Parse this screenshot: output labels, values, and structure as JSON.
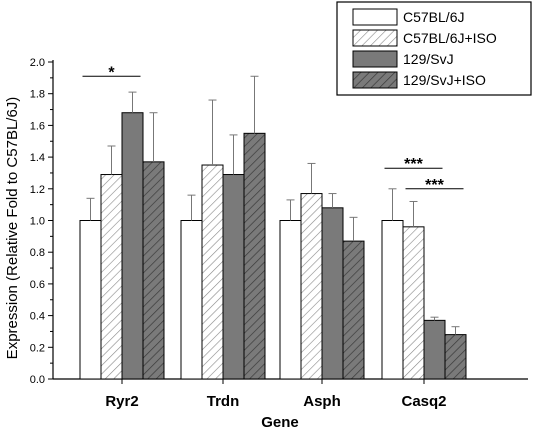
{
  "chart_data": {
    "type": "bar",
    "xlabel": "Gene",
    "ylabel": "Expression (Relative Fold to C57BL/6J)",
    "ylim": [
      0.0,
      2.0
    ],
    "yticks": [
      "0.0",
      "0.2",
      "0.4",
      "0.6",
      "0.8",
      "1.0",
      "1.2",
      "1.4",
      "1.6",
      "1.8",
      "2.0"
    ],
    "categories": [
      "Ryr2",
      "Trdn",
      "Asph",
      "Casq2"
    ],
    "legend_position": "top-right",
    "series": [
      {
        "name": "C57BL/6J",
        "fill": "#ffffff",
        "pattern": "none",
        "values": [
          1.0,
          1.0,
          1.0,
          1.0
        ],
        "errors": [
          0.14,
          0.16,
          0.13,
          0.2
        ]
      },
      {
        "name": "C57BL/6J+ISO",
        "fill": "#ffffff",
        "pattern": "hatch",
        "values": [
          1.29,
          1.35,
          1.17,
          0.96
        ],
        "errors": [
          0.18,
          0.41,
          0.19,
          0.16
        ]
      },
      {
        "name": "129/SvJ",
        "fill": "#7a7a7a",
        "pattern": "none",
        "values": [
          1.68,
          1.29,
          1.08,
          0.37
        ],
        "errors": [
          0.13,
          0.25,
          0.09,
          0.02
        ]
      },
      {
        "name": "129/SvJ+ISO",
        "fill": "#7a7a7a",
        "pattern": "hatch",
        "values": [
          1.37,
          1.55,
          0.87,
          0.28
        ],
        "errors": [
          0.31,
          0.36,
          0.15,
          0.05
        ]
      }
    ],
    "significance": [
      {
        "label": "*",
        "category": 0,
        "from_series": 0,
        "to_series": 2
      },
      {
        "label": "***",
        "category": 3,
        "from_series": 0,
        "to_series": 2
      },
      {
        "label": "***",
        "category": 3,
        "from_series": 1,
        "to_series": 3
      }
    ]
  }
}
